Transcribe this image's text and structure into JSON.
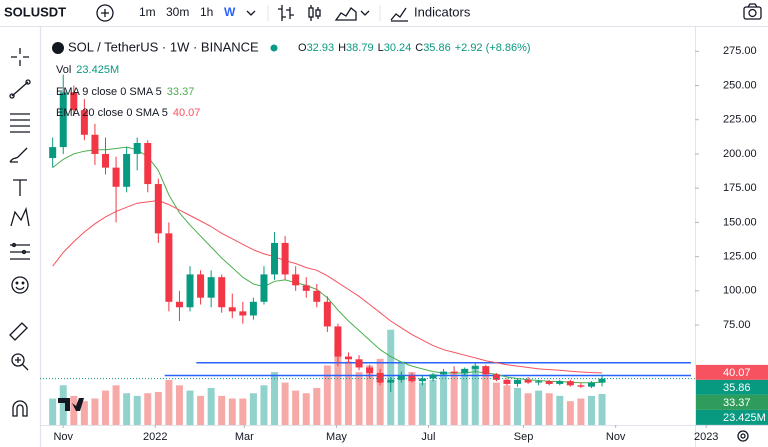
{
  "toolbar": {
    "symbol": "SOLUSDT",
    "intervals": [
      "1m",
      "30m",
      "1h",
      "W"
    ],
    "active_interval": 3,
    "indicators": "Indicators"
  },
  "chart_data": {
    "type": "candlestick",
    "title": "SOL / TetherUS · 1W · BINANCE",
    "change": "+2.92 (+8.86%)",
    "ohlc_labels": [
      "O",
      "H",
      "L",
      "C"
    ],
    "open": [
      197,
      205,
      245,
      232,
      214,
      200,
      190,
      176,
      200,
      208,
      178,
      142,
      92,
      88,
      112,
      95,
      110,
      88,
      85,
      82,
      92,
      112,
      135,
      112,
      104,
      100,
      92,
      74,
      52,
      50,
      44,
      40,
      33,
      35,
      38,
      34,
      36,
      39,
      41,
      40,
      43,
      45,
      39,
      35,
      32,
      35,
      33,
      34,
      32,
      34,
      31,
      30,
      32.93
    ],
    "high": [
      212,
      258,
      250,
      240,
      222,
      212,
      198,
      205,
      212,
      210,
      182,
      150,
      100,
      118,
      115,
      115,
      112,
      98,
      92,
      95,
      118,
      143,
      140,
      118,
      110,
      105,
      96,
      76,
      55,
      53,
      46,
      43,
      37,
      41,
      40,
      38,
      40,
      43,
      45,
      44,
      47,
      46,
      40,
      36,
      36,
      37,
      35,
      35,
      35,
      35,
      33,
      34,
      38.79
    ],
    "low": [
      190,
      200,
      228,
      210,
      192,
      185,
      150,
      172,
      188,
      172,
      135,
      85,
      78,
      85,
      90,
      88,
      84,
      80,
      76,
      79,
      90,
      108,
      108,
      100,
      95,
      88,
      70,
      45,
      47,
      42,
      36,
      31,
      26,
      33,
      33,
      31,
      34,
      38,
      39,
      38,
      40,
      38,
      34,
      31,
      30,
      32,
      31,
      31,
      31,
      30,
      29,
      29,
      30.24
    ],
    "close": [
      205,
      245,
      232,
      214,
      200,
      190,
      176,
      200,
      208,
      178,
      142,
      92,
      88,
      112,
      95,
      110,
      88,
      85,
      82,
      92,
      112,
      135,
      112,
      104,
      100,
      92,
      74,
      52,
      50,
      44,
      40,
      33,
      35,
      38,
      34,
      36,
      39,
      41,
      40,
      43,
      45,
      39,
      35,
      32,
      35,
      33,
      34,
      32,
      34,
      31,
      30,
      33,
      35.86
    ],
    "up_color": "#089981",
    "down_color": "#f23645",
    "volume": {
      "name": "Vol",
      "up_color": "#92d2cc",
      "down_color": "#f7a9a7",
      "values": [
        20,
        30,
        22,
        18,
        20,
        26,
        30,
        24,
        22,
        24,
        25,
        34,
        30,
        26,
        22,
        28,
        22,
        20,
        20,
        24,
        30,
        40,
        32,
        26,
        24,
        28,
        45,
        62,
        48,
        40,
        45,
        50,
        72,
        48,
        40,
        32,
        34,
        38,
        40,
        42,
        45,
        38,
        32,
        30,
        28,
        24,
        26,
        24,
        22,
        18,
        20,
        22,
        23.425
      ],
      "last_label": "23.425M",
      "ylim": [
        0,
        300
      ]
    },
    "series": [
      {
        "name": "EMA 9 close 0 SMA 5",
        "color": "#4caf50",
        "values": [
          190,
          196,
          200,
          202,
          203,
          203,
          204,
          205,
          203,
          198,
          188,
          170,
          157,
          148,
          140,
          132,
          124,
          117,
          110,
          105,
          103,
          107,
          108,
          106,
          104,
          101,
          95,
          86,
          78,
          71,
          64,
          57,
          52,
          48,
          45,
          43,
          41,
          40,
          40,
          40,
          41,
          40,
          39,
          37,
          36,
          35,
          34.5,
          34,
          33.8,
          33.3,
          32.8,
          32.8,
          33.37
        ]
      },
      {
        "name": "EMA 20 close 0 SMA 5",
        "color": "#f7525f",
        "values": [
          118,
          128,
          136,
          143,
          149,
          154,
          158,
          161,
          164,
          165,
          166,
          163,
          159,
          155,
          151,
          147,
          142,
          138,
          134,
          130,
          127,
          125,
          122,
          120,
          117,
          115,
          111,
          106,
          101,
          96,
          90,
          84,
          78,
          73,
          68,
          64,
          60,
          57,
          55,
          53,
          51,
          49,
          47.5,
          46,
          45,
          44,
          43,
          42.5,
          42,
          41.3,
          40.7,
          40.3,
          40.07
        ]
      }
    ],
    "ylim": [
      2,
      292
    ],
    "yticks": [
      {
        "value": 75,
        "label": "75.00"
      },
      {
        "value": 100,
        "label": "100.00"
      },
      {
        "value": 125,
        "label": "125.00"
      },
      {
        "value": 150,
        "label": "150.00"
      },
      {
        "value": 175,
        "label": "175.00"
      },
      {
        "value": 200,
        "label": "200.00"
      },
      {
        "value": 225,
        "label": "225.00"
      },
      {
        "value": 250,
        "label": "250.00"
      },
      {
        "value": 275,
        "label": "275.00"
      }
    ],
    "xlim": [
      -1.2,
      60.8
    ],
    "xticks": [
      {
        "value": 1,
        "label": "Nov"
      },
      {
        "value": 9.71,
        "label": "2022"
      },
      {
        "value": 18.14,
        "label": "Mar"
      },
      {
        "value": 26.86,
        "label": "May"
      },
      {
        "value": 35.57,
        "label": "Jul"
      },
      {
        "value": 44.57,
        "label": "Sep"
      },
      {
        "value": 53.29,
        "label": "Nov"
      },
      {
        "value": 61.86,
        "label": "2023"
      }
    ],
    "hlines": [
      {
        "value": 47.5,
        "x0": 13.6,
        "color": "#2962ff"
      },
      {
        "value": 38.2,
        "x0": 10.6,
        "color": "#2962ff"
      }
    ],
    "grid": false
  }
}
